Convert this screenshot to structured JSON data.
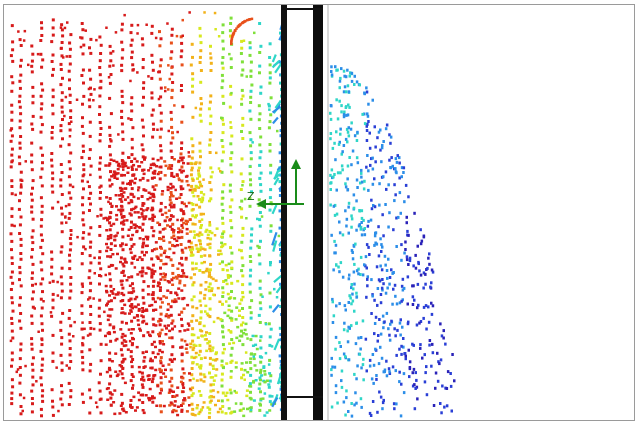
{
  "scene": {
    "axis_glyph": "Z",
    "colormap": [
      "#d71b1b",
      "#e8501b",
      "#f2b21a",
      "#d7e81f",
      "#7fe03a",
      "#2fd6c8",
      "#2c8ee8",
      "#2a3fd6",
      "#2a22b8"
    ]
  }
}
